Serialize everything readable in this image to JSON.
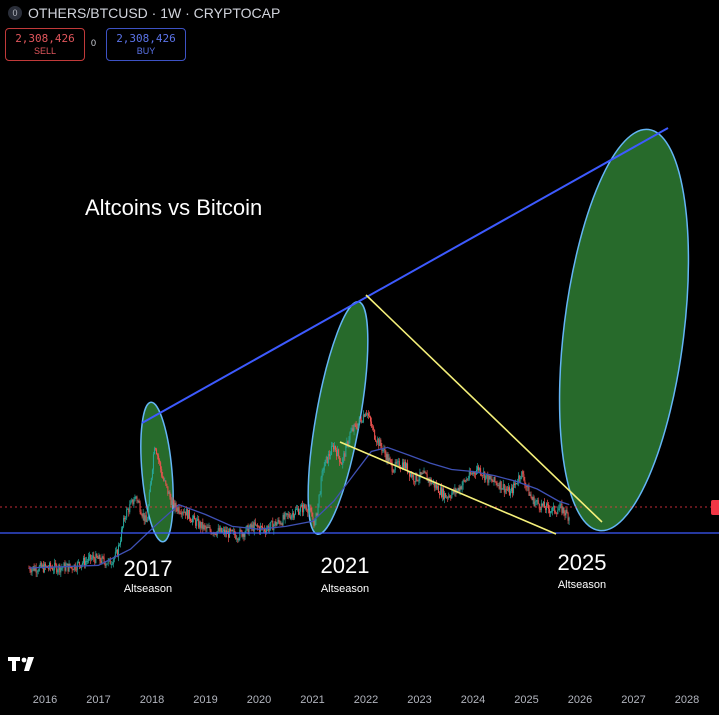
{
  "header": {
    "symbol_icon": "0",
    "title": "OTHERS/BTCUSD · 1W · CRYPTOCAP"
  },
  "trade": {
    "sell_value": "2,308,426",
    "sell_label": "SELL",
    "spread": "0",
    "buy_value": "2,308,426",
    "buy_label": "BUY"
  },
  "annotations": {
    "title": "Altcoins vs Bitcoin",
    "seasons": [
      {
        "year": "2017",
        "label": "Altseason"
      },
      {
        "year": "2021",
        "label": "Altseason"
      },
      {
        "year": "2025",
        "label": "Altseason"
      }
    ]
  },
  "colors": {
    "background": "#000000",
    "candle_up": "#26a69a",
    "candle_down": "#ef5350",
    "moving_average": "#3f51b5",
    "upper_trendline": "#3d5afe",
    "wedge_lines": "#f5f07a",
    "support_line": "#3d5afe",
    "ellipse_fill": "#2e7d32",
    "ellipse_stroke": "#64b5f6",
    "price_line": "#f23645"
  },
  "icons": {
    "logo": "tradingview-logo",
    "symbol": "symbol-badge-icon"
  },
  "chart_data": {
    "type": "line",
    "title": "Altcoins vs Bitcoin",
    "x_axis": {
      "ticks": [
        "2016",
        "2017",
        "2018",
        "2019",
        "2020",
        "2021",
        "2022",
        "2023",
        "2024",
        "2025",
        "2026",
        "2027",
        "2028"
      ]
    },
    "y_axis": {
      "scale": "log",
      "labels_visible": false
    },
    "series": [
      {
        "values_x": [
          2015.7,
          2016.5,
          2016.9,
          2017.2,
          2017.35,
          2017.5,
          2017.7,
          2017.9,
          2018.05,
          2018.2,
          2018.4,
          2018.6,
          2018.8,
          2019.0,
          2019.3,
          2019.6,
          2019.9,
          2020.1,
          2020.4,
          2020.7,
          2020.9,
          2021.05,
          2021.2,
          2021.4,
          2021.55,
          2021.7,
          2021.9,
          2022.0,
          2022.15,
          2022.3,
          2022.5,
          2022.7,
          2022.9,
          2023.1,
          2023.3,
          2023.5,
          2023.7,
          2023.9,
          2024.1,
          2024.3,
          2024.5,
          2024.7,
          2024.9,
          2025.1,
          2025.3,
          2025.5,
          2025.65,
          2025.8
        ],
        "values_y": [
          1.0,
          1.02,
          1.2,
          1.1,
          1.3,
          2.6,
          3.6,
          2.2,
          9.5,
          5.0,
          3.0,
          2.8,
          2.3,
          2.0,
          1.9,
          1.8,
          2.1,
          2.0,
          2.3,
          2.8,
          3.0,
          2.2,
          6.0,
          9.0,
          6.5,
          11.0,
          14.0,
          17.0,
          11.0,
          8.5,
          6.0,
          6.5,
          5.0,
          5.2,
          4.3,
          3.6,
          4.0,
          5.0,
          6.0,
          4.8,
          4.5,
          3.8,
          5.5,
          3.4,
          3.0,
          2.8,
          2.9,
          2.5
        ]
      },
      {
        "values_x": [
          2015.7,
          2017.0,
          2017.6,
          2018.1,
          2018.5,
          2019.0,
          2019.5,
          2020.0,
          2020.5,
          2021.0,
          2021.4,
          2021.8,
          2022.1,
          2022.4,
          2022.8,
          2023.2,
          2023.6,
          2024.0,
          2024.4,
          2024.8,
          2025.2,
          2025.6,
          2025.8
        ],
        "values_y": [
          1.0,
          1.05,
          1.4,
          2.2,
          3.1,
          2.6,
          2.1,
          2.0,
          2.1,
          2.3,
          3.3,
          5.5,
          8.0,
          8.6,
          7.5,
          6.5,
          5.8,
          5.6,
          5.2,
          4.7,
          4.1,
          3.3,
          3.1
        ]
      }
    ],
    "annotations": [
      "2017 Altseason",
      "2021 Altseason",
      "2025 Altseason"
    ]
  }
}
